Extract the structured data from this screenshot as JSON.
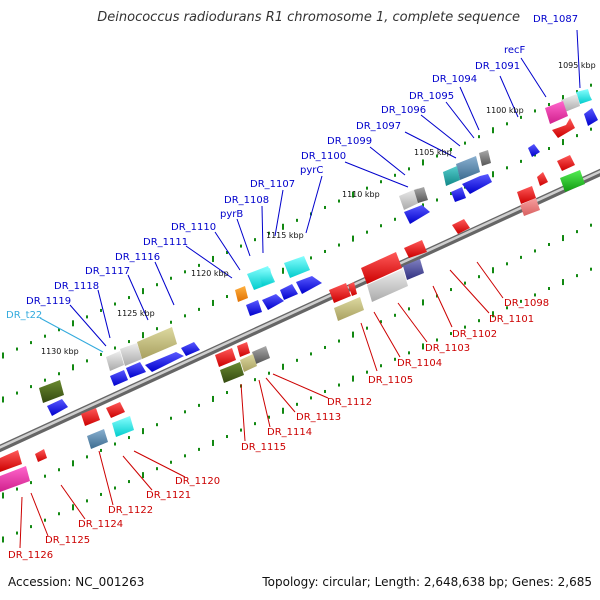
{
  "title": "Deinococcus radiodurans R1 chromosome 1, complete sequence",
  "footer": {
    "accession": "Accession: NC_001263",
    "summary": "Topology: circular; Length: 2,648,638 bp; Genes: 2,685"
  },
  "colors": {
    "forward_label": "#0000cc",
    "reverse_label": "#cc0000",
    "trna_label": "#33aadd",
    "backbone": "#888888",
    "tick": "#118811"
  },
  "kbp_labels": [
    "1095 kbp",
    "1100 kbp",
    "1105 kbp",
    "1110 kbp",
    "1115 kbp",
    "1120 kbp",
    "1125 kbp",
    "1130 kbp"
  ],
  "forward_labels": [
    "DR_1087",
    "recF",
    "DR_1091",
    "DR_1094",
    "DR_1095",
    "DR_1096",
    "DR_1097",
    "DR_1099",
    "DR_1100",
    "pyrC",
    "DR_1107",
    "DR_1108",
    "pyrB",
    "DR_1110",
    "DR_1111",
    "DR_1116",
    "DR_1117",
    "DR_1118",
    "DR_1119",
    "DR_t22"
  ],
  "reverse_labels": [
    "DR_1098",
    "DR_1101",
    "DR_1102",
    "DR_1103",
    "DR_1104",
    "DR_1105",
    "DR_1112",
    "DR_1113",
    "DR_1114",
    "DR_1115",
    "DR_1120",
    "DR_1121",
    "DR_1122",
    "DR_1124",
    "DR_1125",
    "DR_1126"
  ]
}
